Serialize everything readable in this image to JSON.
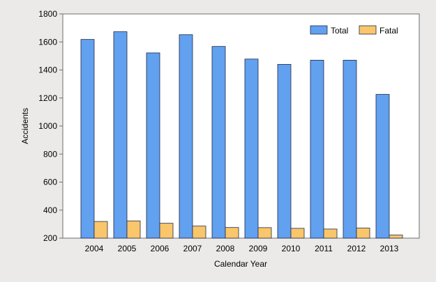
{
  "chart_data": {
    "type": "bar",
    "categories": [
      "2004",
      "2005",
      "2006",
      "2007",
      "2008",
      "2009",
      "2010",
      "2011",
      "2012",
      "2013"
    ],
    "series": [
      {
        "name": "Total",
        "color": "#62a0f0",
        "values": [
          1618,
          1673,
          1522,
          1652,
          1568,
          1478,
          1440,
          1470,
          1470,
          1226
        ]
      },
      {
        "name": "Fatal",
        "color": "#f9c66b",
        "values": [
          319,
          323,
          306,
          286,
          276,
          275,
          270,
          265,
          272,
          222
        ]
      }
    ],
    "xlabel": "Calendar Year",
    "ylabel": "Accidents",
    "ylim": [
      200,
      1800
    ],
    "yticks": [
      "200",
      "400",
      "600",
      "800",
      "1000",
      "1200",
      "1400",
      "1600",
      "1800"
    ],
    "grid": false,
    "legend_position": "top-right",
    "plot_background": "#ffffff",
    "page_background": "#ece9e9"
  }
}
